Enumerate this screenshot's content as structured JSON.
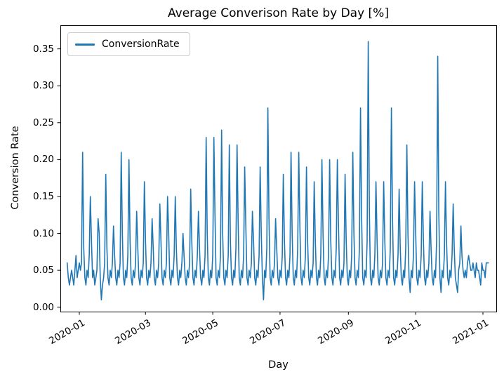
{
  "title": "Average Converison Rate by Day [%]",
  "legend": {
    "label": "ConversionRate"
  },
  "x_axis": {
    "label": "Day",
    "tick_labels": [
      "2020-01",
      "2020-03",
      "2020-05",
      "2020-07",
      "2020-09",
      "2020-11",
      "2021-01"
    ]
  },
  "y_axis": {
    "label": "Conversion Rate",
    "tick_labels": [
      "0.00",
      "0.05",
      "0.10",
      "0.15",
      "0.20",
      "0.25",
      "0.30",
      "0.35"
    ]
  },
  "colors": {
    "line": "#1f77b4",
    "text": "#000000",
    "spine": "#000000",
    "background": "#ffffff",
    "legend_border": "#cccccc"
  },
  "chart_data": {
    "type": "line",
    "title": "Average Converison Rate by Day [%]",
    "xlabel": "Day",
    "ylabel": "Conversion Rate",
    "legend_position": "upper left",
    "grid": false,
    "x_unit": "daily dates",
    "x_start_date": "2019-12-21",
    "x_tick_labels": [
      "2020-01",
      "2020-03",
      "2020-05",
      "2020-07",
      "2020-09",
      "2020-11",
      "2021-01"
    ],
    "x_tick_day_offsets": [
      11,
      71,
      132,
      193,
      255,
      316,
      377
    ],
    "ylim": [
      -0.006,
      0.382
    ],
    "y_ticks": [
      0.0,
      0.05,
      0.1,
      0.15,
      0.2,
      0.25,
      0.3,
      0.35
    ],
    "series": [
      {
        "name": "ConversionRate",
        "color": "#1f77b4",
        "values": [
          0.06,
          0.04,
          0.03,
          0.04,
          0.05,
          0.04,
          0.03,
          0.05,
          0.07,
          0.04,
          0.05,
          0.06,
          0.05,
          0.06,
          0.21,
          0.08,
          0.04,
          0.03,
          0.05,
          0.04,
          0.07,
          0.15,
          0.09,
          0.04,
          0.05,
          0.03,
          0.04,
          0.05,
          0.12,
          0.1,
          0.04,
          0.01,
          0.03,
          0.04,
          0.06,
          0.18,
          0.08,
          0.04,
          0.03,
          0.05,
          0.04,
          0.06,
          0.11,
          0.07,
          0.04,
          0.03,
          0.05,
          0.04,
          0.06,
          0.21,
          0.1,
          0.04,
          0.03,
          0.05,
          0.04,
          0.07,
          0.2,
          0.09,
          0.04,
          0.03,
          0.05,
          0.04,
          0.06,
          0.13,
          0.08,
          0.04,
          0.03,
          0.05,
          0.04,
          0.06,
          0.17,
          0.09,
          0.04,
          0.03,
          0.05,
          0.04,
          0.06,
          0.12,
          0.08,
          0.04,
          0.03,
          0.05,
          0.04,
          0.06,
          0.14,
          0.09,
          0.04,
          0.03,
          0.05,
          0.04,
          0.06,
          0.15,
          0.1,
          0.04,
          0.03,
          0.05,
          0.04,
          0.07,
          0.15,
          0.08,
          0.04,
          0.03,
          0.05,
          0.04,
          0.06,
          0.1,
          0.07,
          0.04,
          0.03,
          0.05,
          0.04,
          0.06,
          0.16,
          0.09,
          0.04,
          0.03,
          0.05,
          0.04,
          0.07,
          0.13,
          0.08,
          0.04,
          0.03,
          0.05,
          0.04,
          0.07,
          0.23,
          0.1,
          0.04,
          0.03,
          0.05,
          0.04,
          0.07,
          0.23,
          0.13,
          0.04,
          0.03,
          0.05,
          0.04,
          0.07,
          0.24,
          0.1,
          0.04,
          0.03,
          0.05,
          0.04,
          0.07,
          0.22,
          0.09,
          0.04,
          0.03,
          0.05,
          0.04,
          0.08,
          0.22,
          0.12,
          0.04,
          0.03,
          0.05,
          0.04,
          0.07,
          0.19,
          0.11,
          0.04,
          0.03,
          0.05,
          0.04,
          0.06,
          0.13,
          0.09,
          0.04,
          0.03,
          0.05,
          0.04,
          0.07,
          0.19,
          0.1,
          0.04,
          0.01,
          0.05,
          0.04,
          0.08,
          0.27,
          0.12,
          0.04,
          0.03,
          0.05,
          0.04,
          0.06,
          0.12,
          0.08,
          0.04,
          0.03,
          0.05,
          0.04,
          0.07,
          0.18,
          0.09,
          0.04,
          0.03,
          0.05,
          0.04,
          0.07,
          0.21,
          0.1,
          0.04,
          0.03,
          0.05,
          0.04,
          0.08,
          0.21,
          0.11,
          0.04,
          0.03,
          0.05,
          0.04,
          0.07,
          0.19,
          0.09,
          0.04,
          0.03,
          0.05,
          0.04,
          0.06,
          0.17,
          0.09,
          0.04,
          0.03,
          0.05,
          0.04,
          0.07,
          0.2,
          0.1,
          0.04,
          0.03,
          0.05,
          0.04,
          0.07,
          0.2,
          0.09,
          0.04,
          0.03,
          0.05,
          0.04,
          0.08,
          0.2,
          0.11,
          0.04,
          0.03,
          0.05,
          0.04,
          0.06,
          0.18,
          0.09,
          0.04,
          0.03,
          0.05,
          0.04,
          0.07,
          0.21,
          0.1,
          0.04,
          0.03,
          0.05,
          0.04,
          0.08,
          0.27,
          0.12,
          0.04,
          0.03,
          0.05,
          0.04,
          0.09,
          0.36,
          0.13,
          0.04,
          0.03,
          0.05,
          0.04,
          0.07,
          0.17,
          0.09,
          0.04,
          0.03,
          0.05,
          0.04,
          0.06,
          0.17,
          0.09,
          0.04,
          0.03,
          0.05,
          0.04,
          0.08,
          0.27,
          0.12,
          0.04,
          0.03,
          0.05,
          0.04,
          0.07,
          0.16,
          0.08,
          0.04,
          0.03,
          0.05,
          0.04,
          0.08,
          0.22,
          0.1,
          0.04,
          0.02,
          0.05,
          0.04,
          0.07,
          0.17,
          0.1,
          0.04,
          0.03,
          0.05,
          0.04,
          0.07,
          0.17,
          0.09,
          0.04,
          0.03,
          0.05,
          0.04,
          0.06,
          0.13,
          0.08,
          0.04,
          0.03,
          0.05,
          0.04,
          0.09,
          0.34,
          0.13,
          0.04,
          0.02,
          0.05,
          0.04,
          0.07,
          0.17,
          0.09,
          0.04,
          0.03,
          0.05,
          0.04,
          0.07,
          0.14,
          0.08,
          0.04,
          0.03,
          0.02,
          0.05,
          0.06,
          0.11,
          0.07,
          0.05,
          0.04,
          0.05,
          0.04,
          0.06,
          0.07,
          0.06,
          0.05,
          0.05,
          0.06,
          0.05,
          0.04,
          0.06,
          0.05,
          0.05,
          0.04,
          0.03,
          0.06,
          0.05,
          0.05,
          0.04,
          0.06,
          0.06,
          0.06
        ]
      }
    ]
  }
}
